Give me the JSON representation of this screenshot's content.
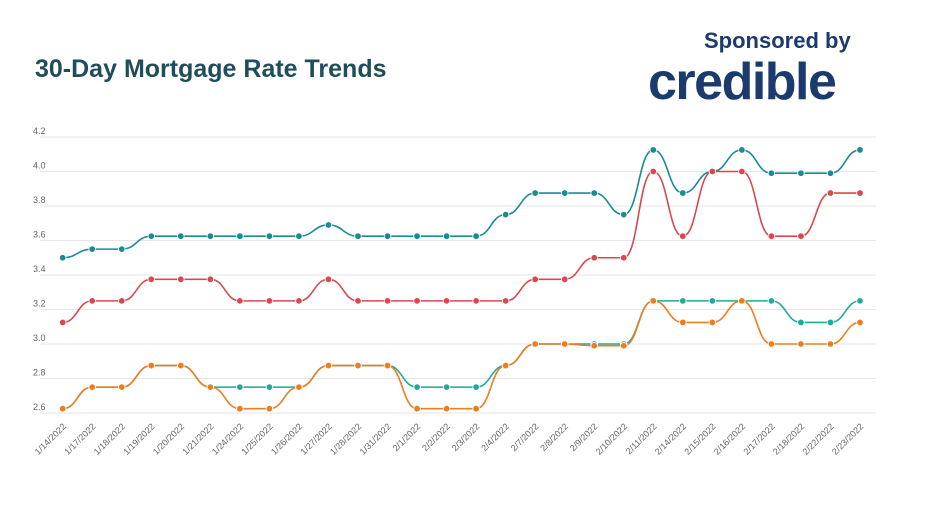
{
  "header": {
    "title": "30-Day Mortgage Rate Trends",
    "sponsor_label": "Sponsored by",
    "logo": "credible"
  },
  "chart_data": {
    "type": "line",
    "title": "30-Day Mortgage Rate Trends",
    "xlabel": "",
    "ylabel": "",
    "ylim": [
      2.6,
      4.2
    ],
    "yticks": [
      "2.6",
      "2.8",
      "3.0",
      "3.2",
      "3.4",
      "3.6",
      "3.8",
      "4.0",
      "4.2"
    ],
    "grid": true,
    "legend": "none",
    "categories": [
      "1/14/2022",
      "1/17/2022",
      "1/18/2022",
      "1/19/2022",
      "1/20/2022",
      "1/21/2022",
      "1/24/2022",
      "1/25/2022",
      "1/26/2022",
      "1/27/2022",
      "1/28/2022",
      "1/31/2022",
      "2/1/2022",
      "2/2/2022",
      "2/3/2022",
      "2/4/2022",
      "2/7/2022",
      "2/8/2022",
      "2/9/2022",
      "2/10/2022",
      "2/11/2022",
      "2/14/2022",
      "2/15/2022",
      "2/16/2022",
      "2/17/2022",
      "2/18/2022",
      "2/22/2022",
      "2/23/2022"
    ],
    "series": [
      {
        "color": "#1a8a96",
        "values": [
          3.5,
          3.55,
          3.55,
          3.625,
          3.625,
          3.625,
          3.625,
          3.625,
          3.625,
          3.69,
          3.625,
          3.625,
          3.625,
          3.625,
          3.625,
          3.75,
          3.875,
          3.875,
          3.875,
          3.75,
          4.125,
          3.875,
          4.0,
          4.125,
          3.99,
          3.99,
          3.99,
          4.125
        ]
      },
      {
        "color": "#d9474f",
        "values": [
          3.125,
          3.25,
          3.25,
          3.375,
          3.375,
          3.375,
          3.25,
          3.25,
          3.25,
          3.375,
          3.25,
          3.25,
          3.25,
          3.25,
          3.25,
          3.25,
          3.375,
          3.375,
          3.5,
          3.5,
          4.0,
          3.625,
          4.0,
          4.0,
          3.625,
          3.625,
          3.875,
          3.875
        ]
      },
      {
        "color": "#1fab98",
        "values": [
          2.625,
          2.75,
          2.75,
          2.875,
          2.875,
          2.75,
          2.75,
          2.75,
          2.75,
          2.875,
          2.875,
          2.875,
          2.75,
          2.75,
          2.75,
          2.875,
          3.0,
          3.0,
          3.0,
          3.0,
          3.25,
          3.25,
          3.25,
          3.25,
          3.25,
          3.125,
          3.125,
          3.25
        ]
      },
      {
        "color": "#ef7d1f",
        "values": [
          2.625,
          2.75,
          2.75,
          2.875,
          2.875,
          2.75,
          2.625,
          2.625,
          2.75,
          2.875,
          2.875,
          2.875,
          2.625,
          2.625,
          2.625,
          2.875,
          3.0,
          3.0,
          2.99,
          2.99,
          3.25,
          3.125,
          3.125,
          3.25,
          3.0,
          3.0,
          3.0,
          3.125
        ]
      }
    ]
  }
}
